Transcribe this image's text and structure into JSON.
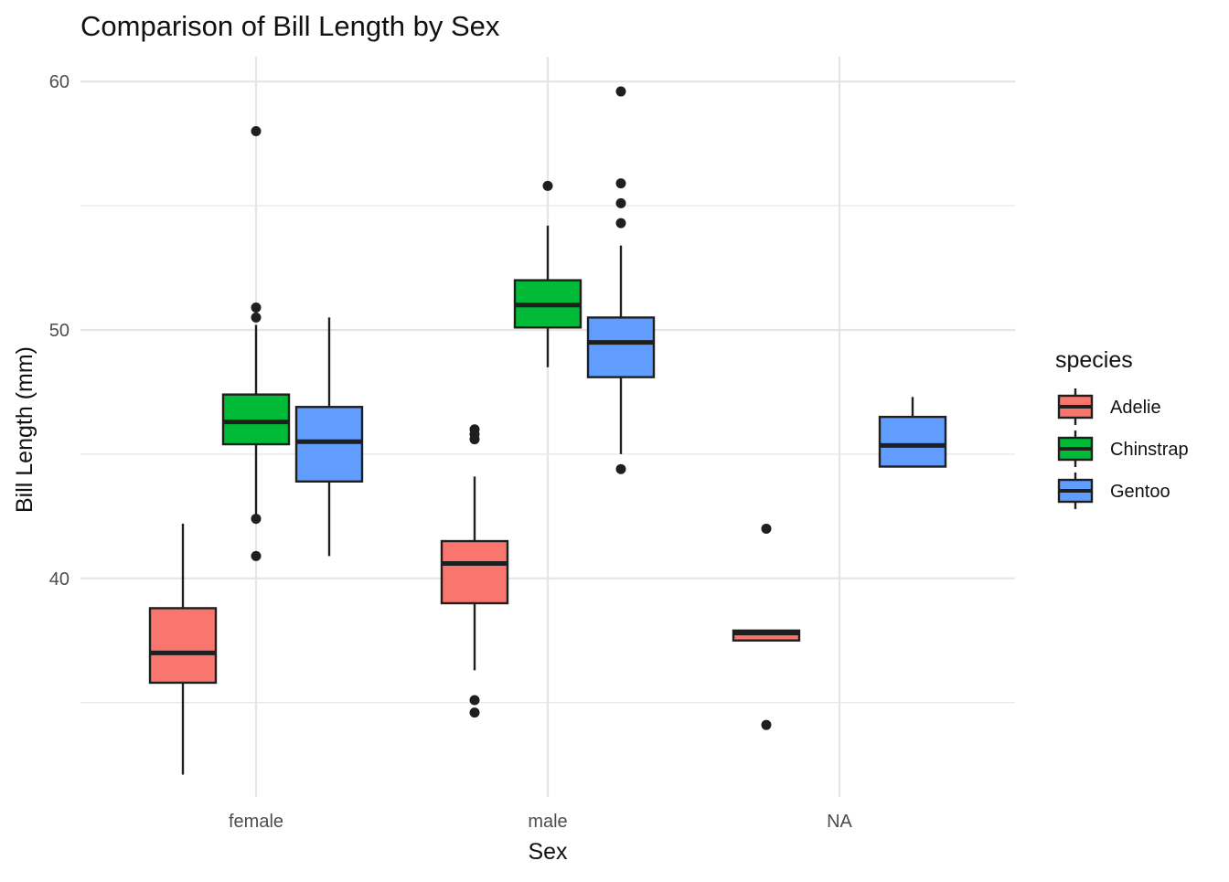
{
  "chart_data": {
    "type": "boxplot",
    "title": "Comparison of Bill Length by Sex",
    "xlabel": "Sex",
    "ylabel": "Bill Length (mm)",
    "categories": [
      "female",
      "male",
      "NA"
    ],
    "ylim": [
      31.2,
      61.0
    ],
    "yticks": [
      40,
      50,
      60
    ],
    "ytick_labels": [
      "40",
      "50",
      "60"
    ],
    "grid": true,
    "legend": {
      "title": "species",
      "position": "right",
      "items": [
        "Adelie",
        "Chinstrap",
        "Gentoo"
      ]
    },
    "colors": {
      "Adelie": "#F8766D",
      "Chinstrap": "#00BA38",
      "Gentoo": "#619CFF",
      "outline": "#1f1f1f",
      "grid": "#e5e5e5",
      "outlier": "#1f1f1f"
    },
    "series": [
      {
        "name": "Adelie",
        "boxes": [
          {
            "category": "female",
            "q1": 35.8,
            "median": 37.0,
            "q3": 38.8,
            "whisker_low": 32.1,
            "whisker_high": 42.2,
            "outliers": []
          },
          {
            "category": "male",
            "q1": 39.0,
            "median": 40.6,
            "q3": 41.5,
            "whisker_low": 36.3,
            "whisker_high": 44.1,
            "outliers": [
              34.6,
              35.1,
              45.6,
              45.8,
              46.0
            ]
          },
          {
            "category": "NA",
            "q1": 37.5,
            "median": 37.8,
            "q3": 37.9,
            "whisker_low": 37.5,
            "whisker_high": 37.9,
            "outliers": [
              34.1,
              42.0
            ]
          }
        ]
      },
      {
        "name": "Chinstrap",
        "boxes": [
          {
            "category": "female",
            "q1": 45.4,
            "median": 46.3,
            "q3": 47.4,
            "whisker_low": 42.5,
            "whisker_high": 50.2,
            "outliers": [
              40.9,
              42.4,
              50.5,
              50.9,
              58.0
            ]
          },
          {
            "category": "male",
            "q1": 50.1,
            "median": 51.0,
            "q3": 52.0,
            "whisker_low": 48.5,
            "whisker_high": 54.2,
            "outliers": [
              55.8
            ]
          }
        ]
      },
      {
        "name": "Gentoo",
        "boxes": [
          {
            "category": "female",
            "q1": 43.9,
            "median": 45.5,
            "q3": 46.9,
            "whisker_low": 40.9,
            "whisker_high": 50.5,
            "outliers": []
          },
          {
            "category": "male",
            "q1": 48.1,
            "median": 49.5,
            "q3": 50.5,
            "whisker_low": 45.0,
            "whisker_high": 53.4,
            "outliers": [
              44.4,
              54.3,
              55.1,
              55.9,
              59.6
            ]
          },
          {
            "category": "NA",
            "q1": 44.5,
            "median": 45.35,
            "q3": 46.5,
            "whisker_low": 44.5,
            "whisker_high": 47.3,
            "outliers": []
          }
        ]
      }
    ]
  }
}
